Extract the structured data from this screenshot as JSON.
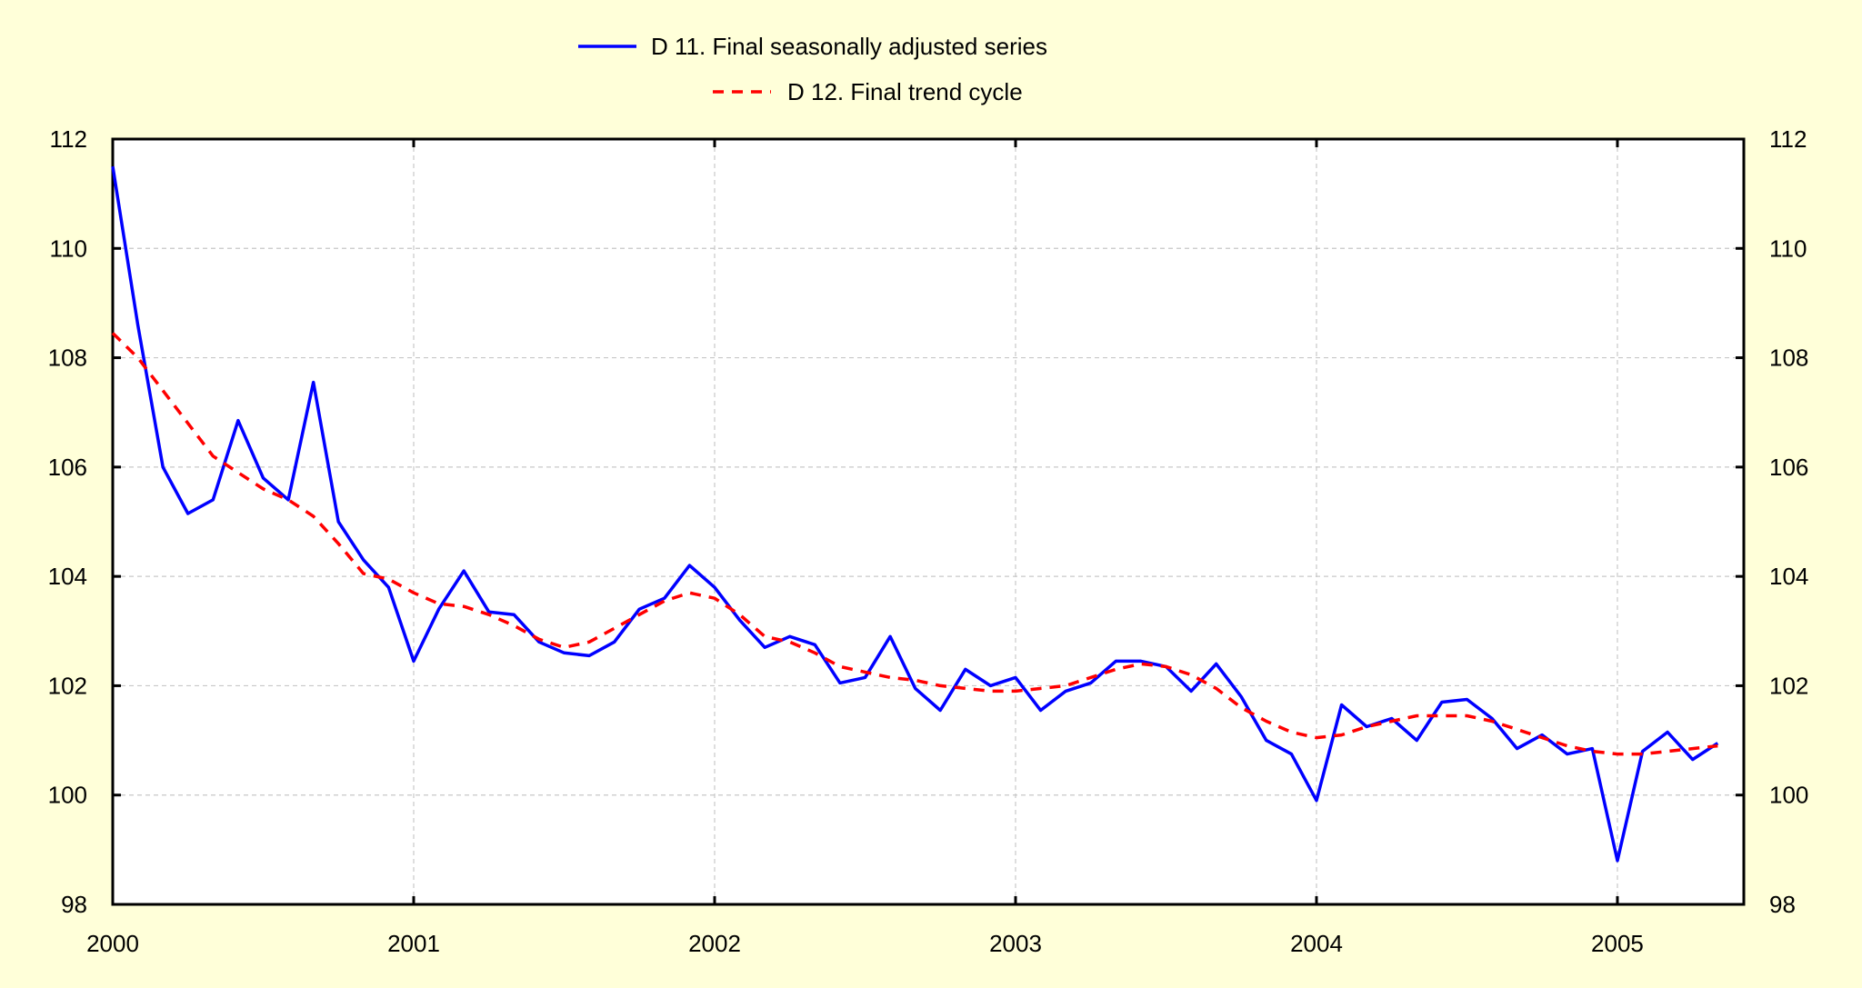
{
  "chart_data": {
    "type": "line",
    "title": "",
    "xlabel": "",
    "ylabel": "",
    "xlim": [
      2000.0,
      2005.42
    ],
    "ylim": [
      98,
      112
    ],
    "x_ticks": [
      "2000",
      "2001",
      "2002",
      "2003",
      "2004",
      "2005"
    ],
    "y_ticks": [
      "98",
      "100",
      "102",
      "104",
      "106",
      "108",
      "110",
      "112"
    ],
    "grid": true,
    "legend_position": "top-center",
    "series": [
      {
        "name": "D 11. Final seasonally adjusted series",
        "color": "#0000ff",
        "style": "solid",
        "x_start": "2000-01",
        "frequency": "monthly",
        "values": [
          111.5,
          108.6,
          106.0,
          105.15,
          105.4,
          106.85,
          105.8,
          105.4,
          107.55,
          105.0,
          104.3,
          103.8,
          102.45,
          103.4,
          104.1,
          103.35,
          103.3,
          102.8,
          102.6,
          102.55,
          102.8,
          103.4,
          103.6,
          104.2,
          103.8,
          103.2,
          102.7,
          102.9,
          102.75,
          102.05,
          102.15,
          102.9,
          101.95,
          101.55,
          102.3,
          102.0,
          102.15,
          101.55,
          101.9,
          102.05,
          102.45,
          102.45,
          102.35,
          101.9,
          102.4,
          101.8,
          101.0,
          100.75,
          99.9,
          101.65,
          101.25,
          101.4,
          101.0,
          101.7,
          101.75,
          101.4,
          100.85,
          101.1,
          100.75,
          100.85,
          98.8,
          100.8,
          101.15,
          100.65,
          100.95
        ]
      },
      {
        "name": "D 12. Final trend cycle",
        "color": "#ff0000",
        "style": "dashed",
        "x_start": "2000-01",
        "frequency": "monthly",
        "values": [
          108.45,
          108.0,
          107.4,
          106.8,
          106.2,
          105.9,
          105.6,
          105.4,
          105.1,
          104.6,
          104.05,
          103.95,
          103.7,
          103.5,
          103.45,
          103.3,
          103.1,
          102.85,
          102.7,
          102.8,
          103.05,
          103.3,
          103.55,
          103.7,
          103.6,
          103.3,
          102.9,
          102.8,
          102.6,
          102.35,
          102.25,
          102.15,
          102.1,
          102.0,
          101.95,
          101.9,
          101.9,
          101.95,
          102.0,
          102.15,
          102.3,
          102.4,
          102.35,
          102.2,
          101.95,
          101.6,
          101.35,
          101.15,
          101.05,
          101.1,
          101.25,
          101.35,
          101.45,
          101.45,
          101.45,
          101.35,
          101.2,
          101.05,
          100.9,
          100.8,
          100.75,
          100.75,
          100.8,
          100.85,
          100.9
        ]
      }
    ]
  }
}
